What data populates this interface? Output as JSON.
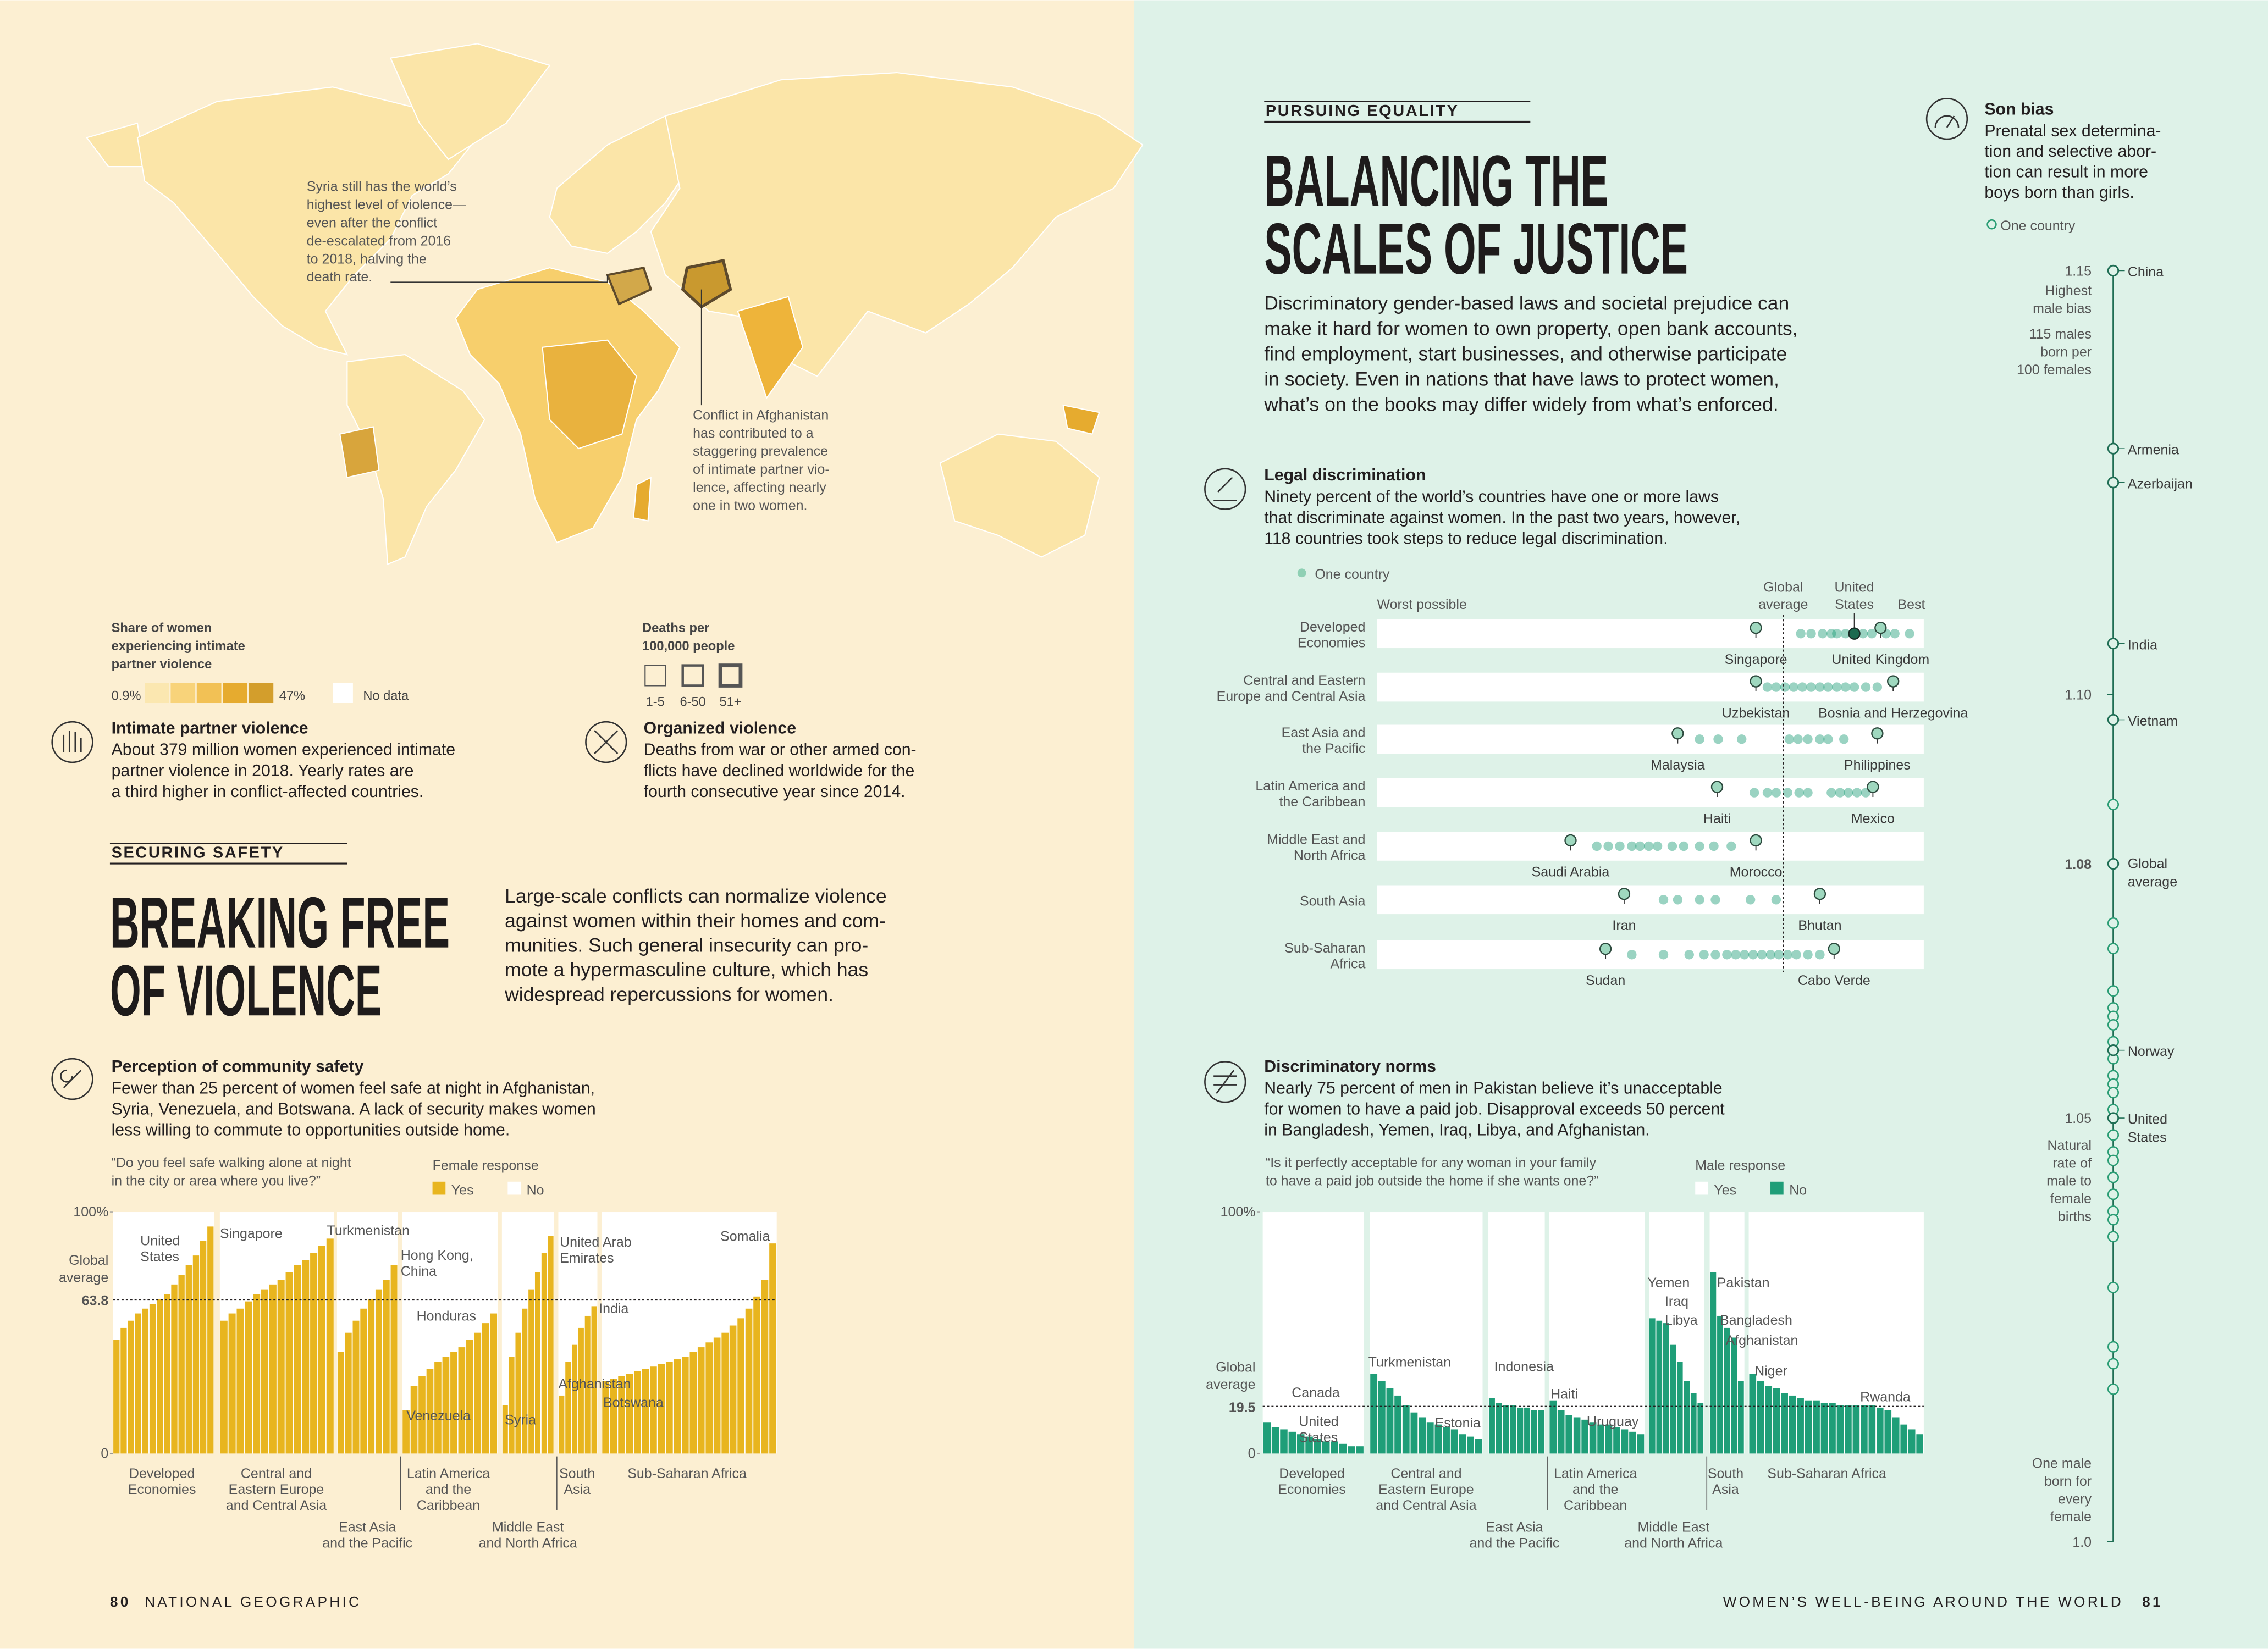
{
  "left_page": {
    "map": {
      "annotations": [
        {
          "lines": [
            "Syria still has the world’s",
            "highest level of violence—",
            "even after the conflict",
            "de-escalated from 2016",
            "to 2018, halving the",
            "death rate."
          ]
        },
        {
          "lines": [
            "Conflict in Afghanistan",
            "has contributed to a",
            "staggering prevalence",
            "of intimate partner vio-",
            "lence, affecting nearly",
            "one in two women."
          ]
        }
      ],
      "legend_share": {
        "title": [
          "Share of women",
          "experiencing intimate",
          "partner violence"
        ],
        "min": "0.9%",
        "max": "47%",
        "colors": [
          "#fbe7b0",
          "#f8d37a",
          "#f2c155",
          "#e6ab2f",
          "#d39e2c"
        ],
        "no_data": "No data",
        "no_data_color": "#ffffff"
      },
      "legend_deaths": {
        "title": [
          "Deaths per",
          "100,000 people"
        ],
        "bins": [
          "1-5",
          "6-50",
          "51+"
        ]
      }
    },
    "intimate_partner_violence": {
      "title": "Intimate partner violence",
      "lines": [
        "About 379 million women experienced intimate",
        "partner violence in 2018. Yearly rates are",
        "a third higher in conflict-affected countries."
      ]
    },
    "organized_violence": {
      "title": "Organized violence",
      "lines": [
        "Deaths from war or other armed con-",
        "flicts have declined worldwide for the",
        "fourth consecutive year since 2014."
      ]
    },
    "kicker": "SECURING SAFETY",
    "headline": [
      "BREAKING FREE",
      "OF VIOLENCE"
    ],
    "intro": [
      "Large-scale conflicts can normalize violence",
      "against women within their homes and com-",
      "munities. Such general insecurity can pro-",
      "mote a hypermasculine culture, which has",
      "widespread repercussions for women."
    ],
    "community_safety": {
      "title": "Perception of community safety",
      "lines": [
        "Fewer than 25 percent of women feel safe at night in Afghanistan,",
        "Syria, Venezuela, and Botswana. A lack of security makes women",
        "less willing to commute to opportunities outside home."
      ]
    },
    "safety_chart": {
      "type": "bar",
      "question": [
        "“Do you feel safe walking alone at night",
        "in the city or area where you live?”"
      ],
      "legend_title": "Female response",
      "legend": [
        {
          "name": "Yes",
          "color": "#e8b51f"
        },
        {
          "name": "No",
          "color": "#ffffff"
        }
      ],
      "ylim": [
        0,
        100
      ],
      "yticks": [
        0,
        {
          "value": 100,
          "label": "100%"
        }
      ],
      "global_average": {
        "label": [
          "Global",
          "average"
        ],
        "value": 63.8
      },
      "groups": [
        {
          "label": [
            "Developed",
            "Economies"
          ],
          "values": [
            47,
            52,
            55,
            58,
            60,
            62,
            64,
            66,
            70,
            74,
            78,
            82,
            88,
            94
          ]
        },
        {
          "label": [
            "Central and",
            "Eastern Europe",
            "and Central Asia"
          ],
          "values": [
            55,
            58,
            60,
            63,
            66,
            68,
            70,
            72,
            75,
            78,
            80,
            83,
            86,
            89
          ]
        },
        {
          "label": [
            "East Asia",
            "and the Pacific"
          ],
          "values": [
            42,
            50,
            55,
            60,
            64,
            68,
            72,
            78
          ]
        },
        {
          "label": [
            "Latin America",
            "and the",
            "Caribbean"
          ],
          "values": [
            18,
            28,
            32,
            35,
            38,
            40,
            42,
            44,
            47,
            50,
            54,
            58
          ]
        },
        {
          "label": [
            "Middle East",
            "and North Africa"
          ],
          "values": [
            20,
            40,
            50,
            60,
            68,
            75,
            83,
            90
          ]
        },
        {
          "label": [
            "South",
            "Asia"
          ],
          "values": [
            24,
            38,
            45,
            52,
            57,
            61
          ]
        },
        {
          "label": [
            "Sub-Saharan Africa"
          ],
          "values": [
            30,
            31,
            32,
            33,
            34,
            35,
            36,
            37,
            38,
            39,
            40,
            42,
            44,
            46,
            48,
            50,
            53,
            56,
            60,
            65,
            72,
            87
          ]
        }
      ],
      "annotations": [
        [
          "United",
          "States"
        ],
        [
          "Singapore"
        ],
        [
          "Turkmenistan"
        ],
        [
          "Hong Kong,",
          "China"
        ],
        [
          "Honduras"
        ],
        [
          "Venezuela"
        ],
        [
          "Syria"
        ],
        [
          "United Arab",
          "Emirates"
        ],
        [
          "India"
        ],
        [
          "Afghanistan"
        ],
        [
          "Botswana"
        ],
        [
          "Somalia"
        ]
      ]
    }
  },
  "right_page": {
    "kicker": "PURSUING EQUALITY",
    "headline": [
      "BALANCING THE",
      "SCALES OF JUSTICE"
    ],
    "intro": [
      "Discriminatory gender-based laws and societal prejudice can",
      "make it hard for women to own property, open bank accounts,",
      "find employment, start businesses, and otherwise participate",
      "in society. Even in nations that have laws to protect women,",
      "what’s on the books may differ widely from what’s enforced."
    ],
    "legal_discrimination": {
      "title": "Legal discrimination",
      "lines": [
        "Ninety percent of the world’s countries have one or more laws",
        "that discriminate against women. In the past two years, however,",
        "118 countries took steps to reduce legal discrimination."
      ]
    },
    "legal_chart": {
      "type": "dot",
      "legend": "One country",
      "worst_label": "Worst possible",
      "best_label": "Best",
      "xlim": [
        0,
        100
      ],
      "global_average": {
        "label": [
          "Global",
          "average"
        ],
        "value": 74.3
      },
      "reference": {
        "label": [
          "United",
          "States"
        ],
        "value": 87.3
      },
      "rows": [
        {
          "name": [
            "Developed",
            "Economies"
          ],
          "values": [
            77.5,
            79.4,
            81.5,
            83.1,
            84.1,
            85.7,
            88.9,
            90.5,
            93.1,
            94.7,
            97.4
          ],
          "highlights": [
            {
              "name": "Singapore",
              "value": 69.3
            },
            {
              "name": "United Kingdom",
              "value": 92.1
            }
          ]
        },
        {
          "name": [
            "Central and Eastern",
            "Europe and Central Asia"
          ],
          "values": [
            71.4,
            73,
            74.6,
            76.2,
            77.8,
            79.4,
            81,
            82.5,
            84.1,
            85.7,
            87.3,
            89.4,
            91.5
          ],
          "highlights": [
            {
              "name": "Uzbekistan",
              "value": 69.3
            },
            {
              "name": "Bosnia and Herzegovina",
              "value": 94.4
            }
          ]
        },
        {
          "name": [
            "East Asia and",
            "the Pacific"
          ],
          "values": [
            59,
            62.4,
            66.7,
            75.4,
            77,
            78.8,
            81,
            82.5,
            85.4
          ],
          "highlights": [
            {
              "name": "Malaysia",
              "value": 55
            },
            {
              "name": "Philippines",
              "value": 91.5
            }
          ]
        },
        {
          "name": [
            "Latin America and",
            "the Caribbean"
          ],
          "values": [
            69,
            71.4,
            73,
            75.1,
            77.2,
            78.8,
            83.1,
            84.7,
            86.2,
            87.8,
            89.4
          ],
          "highlights": [
            {
              "name": "Haiti",
              "value": 62.2
            },
            {
              "name": "Mexico",
              "value": 90.7
            }
          ]
        },
        {
          "name": [
            "Middle East and",
            "North Africa"
          ],
          "values": [
            40.2,
            42.3,
            44.4,
            46.6,
            48.1,
            49.7,
            51.3,
            54,
            56.1,
            59,
            61.6,
            64.8
          ],
          "highlights": [
            {
              "name": "Saudi Arabia",
              "value": 35.4
            },
            {
              "name": "Morocco",
              "value": 69.3
            }
          ]
        },
        {
          "name": [
            "South Asia"
          ],
          "values": [
            52.4,
            55,
            59,
            61.9,
            68.3,
            73
          ],
          "highlights": [
            {
              "name": "Iran",
              "value": 45.2
            },
            {
              "name": "Bhutan",
              "value": 81
            }
          ]
        },
        {
          "name": [
            "Sub-Saharan",
            "Africa"
          ],
          "values": [
            46.6,
            52.4,
            57.1,
            59.8,
            61.9,
            64,
            65.6,
            67.2,
            68.8,
            70.4,
            72,
            73.5,
            75.1,
            76.7,
            78.8,
            81
          ],
          "highlights": [
            {
              "name": "Sudan",
              "value": 41.8
            },
            {
              "name": "Cabo Verde",
              "value": 83.6
            }
          ]
        }
      ]
    },
    "discriminatory_norms": {
      "title": "Discriminatory norms",
      "lines": [
        "Nearly 75 percent of men in Pakistan believe it’s unacceptable",
        "for women to have a paid job. Disapproval exceeds 50 percent",
        "in Bangladesh, Yemen, Iraq, Libya, and Afghanistan."
      ]
    },
    "norms_chart": {
      "type": "bar",
      "question": [
        "“Is it perfectly acceptable for any woman in your family",
        "to have a paid job outside the home if she wants one?”"
      ],
      "legend_title": "Male response",
      "legend": [
        {
          "name": "Yes",
          "color": "#ffffff"
        },
        {
          "name": "No",
          "color": "#1f9e78"
        }
      ],
      "ylim": [
        0,
        100
      ],
      "yticks": [
        0,
        {
          "value": 100,
          "label": "100%"
        }
      ],
      "global_average": {
        "label": [
          "Global",
          "average"
        ],
        "value": 19.5
      },
      "groups": [
        {
          "label": [
            "Developed",
            "Economies"
          ],
          "values": [
            13,
            11,
            10,
            9,
            8,
            7,
            6,
            5,
            5,
            4,
            3,
            3
          ]
        },
        {
          "label": [
            "Central and",
            "Eastern Europe",
            "and Central Asia"
          ],
          "values": [
            33,
            30,
            27,
            24,
            20,
            17,
            15,
            13,
            12,
            11,
            10,
            8,
            7,
            6
          ]
        },
        {
          "label": [
            "East Asia",
            "and the Pacific"
          ],
          "values": [
            23,
            21,
            20,
            20,
            19,
            19,
            18,
            18
          ]
        },
        {
          "label": [
            "Latin America",
            "and the",
            "Caribbean"
          ],
          "values": [
            22,
            18,
            16,
            15,
            14,
            13,
            12,
            12,
            11,
            10,
            9,
            8
          ]
        },
        {
          "label": [
            "Middle East",
            "and North Africa"
          ],
          "values": [
            56,
            55,
            54,
            45,
            38,
            30,
            25,
            21
          ]
        },
        {
          "label": [
            "South",
            "Asia"
          ],
          "values": [
            75,
            57,
            52,
            48,
            30
          ]
        },
        {
          "label": [
            "Sub-Saharan Africa"
          ],
          "values": [
            33,
            30,
            28,
            27,
            25,
            24,
            23,
            22,
            22,
            21,
            21,
            20,
            20,
            20,
            20,
            20,
            19,
            18,
            15,
            12,
            10,
            8
          ]
        }
      ],
      "annotations": [
        [
          "Canada"
        ],
        [
          "United",
          "States"
        ],
        [
          "Turkmenistan"
        ],
        [
          "Estonia"
        ],
        [
          "Indonesia"
        ],
        [
          "Haiti"
        ],
        [
          "Uruguay"
        ],
        [
          "Yemen"
        ],
        [
          "Iraq"
        ],
        [
          "Libya"
        ],
        [
          "Pakistan"
        ],
        [
          "Bangladesh"
        ],
        [
          "Afghanistan"
        ],
        [
          "Niger"
        ],
        [
          "Rwanda"
        ]
      ]
    },
    "son_bias": {
      "title": "Son bias",
      "lines": [
        "Prenatal sex determina-",
        "tion and selective abor-",
        "tion can result in more",
        "boys born than girls."
      ]
    },
    "son_chart": {
      "type": "strip",
      "legend": "One country",
      "ylim": [
        {
          "value": 1,
          "label": "1.0"
        },
        1.15
      ],
      "yticks": [
        {
          "value": 1,
          "label": "1.0"
        },
        1.05,
        {
          "value": 1.1,
          "label": "1.10"
        },
        1.15
      ],
      "global_average": {
        "label": [
          "Global",
          "average"
        ],
        "value": 1.08
      },
      "notes": [
        [
          "Highest",
          "male bias"
        ],
        [
          "115 males",
          "born per",
          "100 females"
        ],
        [
          "Natural",
          "rate of",
          "male to",
          "female",
          "births"
        ],
        [
          "One male",
          "born for",
          "every",
          "female"
        ]
      ],
      "countries": [
        {
          "name": [
            "China"
          ],
          "value": 1.15
        },
        {
          "name": [
            "Armenia"
          ],
          "value": 1.129
        },
        {
          "name": [
            "Azerbaijan"
          ],
          "value": 1.125
        },
        {
          "name": [
            "India"
          ],
          "value": 1.106
        },
        {
          "name": [
            "Vietnam"
          ],
          "value": 1.097
        },
        {
          "name": [
            "Norway"
          ],
          "value": 1.058
        },
        {
          "name": [
            "United",
            "States"
          ],
          "value": 1.05
        }
      ],
      "values": [
        1.087,
        1.073,
        1.07,
        1.065,
        1.063,
        1.062,
        1.061,
        1.059,
        1.057,
        1.055,
        1.054,
        1.053,
        1.051,
        1.048,
        1.046,
        1.045,
        1.043,
        1.041,
        1.039,
        1.038,
        1.036,
        1.03,
        1.023,
        1.021,
        1.018
      ]
    }
  },
  "footer": {
    "left_page_number": "80",
    "left_publication": "NATIONAL GEOGRAPHIC",
    "right_section": "WOMEN’S WELL-BEING AROUND THE WORLD",
    "right_page_number": "81"
  }
}
